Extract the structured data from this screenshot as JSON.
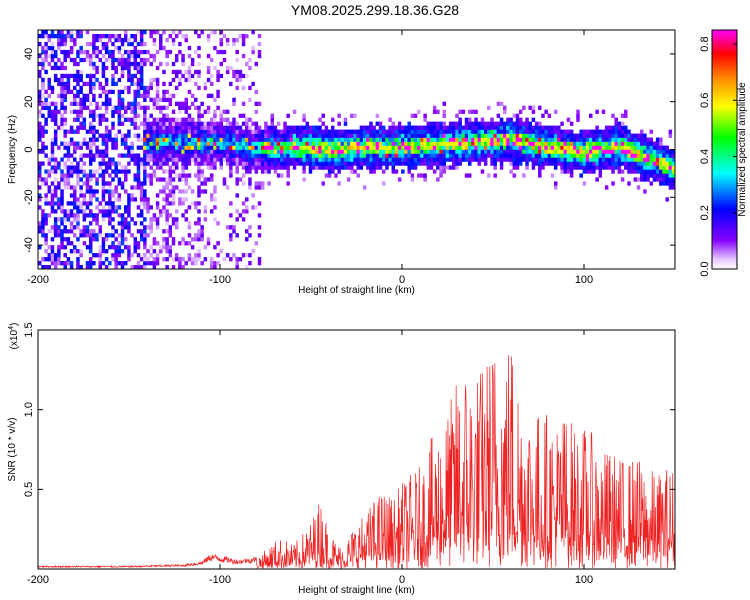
{
  "figure": {
    "title": "YM08.2025.299.18.36.G28"
  },
  "chart_data": [
    {
      "type": "heatmap",
      "xlabel": "Height of straight line (km)",
      "ylabel": "Frequency (Hz)",
      "xlim": [
        -200,
        150
      ],
      "ylim": [
        -50,
        50
      ],
      "xticks": [
        -200,
        -100,
        0,
        100
      ],
      "xtick_labels": [
        "-200",
        "-100",
        "0",
        "100"
      ],
      "yticks": [
        -40,
        -20,
        0,
        20,
        40
      ],
      "ytick_labels": [
        "-40",
        "-20",
        "0",
        "20",
        "40"
      ],
      "signal_center_hz": [
        [
          -140,
          3
        ],
        [
          -100,
          3
        ],
        [
          -80,
          0
        ],
        [
          -60,
          1
        ],
        [
          -40,
          0
        ],
        [
          -20,
          1
        ],
        [
          0,
          1
        ],
        [
          20,
          2
        ],
        [
          40,
          3
        ],
        [
          60,
          4
        ],
        [
          80,
          1
        ],
        [
          100,
          -1
        ],
        [
          120,
          1
        ],
        [
          150,
          -8
        ]
      ],
      "noise_region_km": [
        -200,
        -78
      ],
      "colorbar": {
        "label": "Normalized spectral amplitude",
        "range": [
          0.0,
          0.85
        ],
        "ticks": [
          0.0,
          0.2,
          0.4,
          0.6,
          0.8
        ],
        "tick_labels": [
          "0.0",
          "0.2",
          "0.4",
          "0.6",
          "0.8"
        ],
        "colors": [
          "#ffffff",
          "#8800ff",
          "#0000ff",
          "#00ffff",
          "#00ff00",
          "#ffff00",
          "#ff8800",
          "#ff0000",
          "#ff00ff"
        ]
      }
    },
    {
      "type": "line",
      "xlabel": "Height of straight line (km)",
      "ylabel": "SNR (10 * v/v)",
      "yscale_label": "(x10",
      "yscale_exp": "4",
      "yscale_close": ")",
      "xlim": [
        -200,
        150
      ],
      "ylim": [
        0,
        1.5
      ],
      "xticks": [
        -200,
        -100,
        0,
        100
      ],
      "xtick_labels": [
        "-200",
        "-100",
        "0",
        "100"
      ],
      "yticks": [
        0.5,
        1.0,
        1.5
      ],
      "ytick_labels": [
        "0.5",
        "1.0",
        "1.5"
      ],
      "color": "#ee2222",
      "series": [
        {
          "name": "SNR",
          "x": [
            -200,
            -150,
            -120,
            -110,
            -105,
            -90,
            -80,
            -75,
            -70,
            -65,
            -60,
            -55,
            -50,
            -45,
            -40,
            -35,
            -30,
            -25,
            -20,
            -15,
            -10,
            -5,
            0,
            5,
            10,
            15,
            20,
            25,
            30,
            35,
            40,
            45,
            50,
            55,
            60,
            65,
            70,
            75,
            80,
            85,
            90,
            95,
            100,
            105,
            110,
            115,
            120,
            125,
            130,
            135,
            140,
            145,
            150
          ],
          "y": [
            0.02,
            0.02,
            0.03,
            0.05,
            0.1,
            0.06,
            0.08,
            0.12,
            0.18,
            0.2,
            0.15,
            0.22,
            0.3,
            0.45,
            0.25,
            0.15,
            0.2,
            0.3,
            0.35,
            0.45,
            0.5,
            0.45,
            0.55,
            0.6,
            0.65,
            0.8,
            0.9,
            1.0,
            1.2,
            1.3,
            1.25,
            1.3,
            1.45,
            1.4,
            1.5,
            1.2,
            1.05,
            1.0,
            1.0,
            0.95,
            1.0,
            0.9,
            0.9,
            0.85,
            0.75,
            0.75,
            0.7,
            0.7,
            0.7,
            0.65,
            0.6,
            0.65,
            0.65
          ]
        }
      ]
    }
  ]
}
